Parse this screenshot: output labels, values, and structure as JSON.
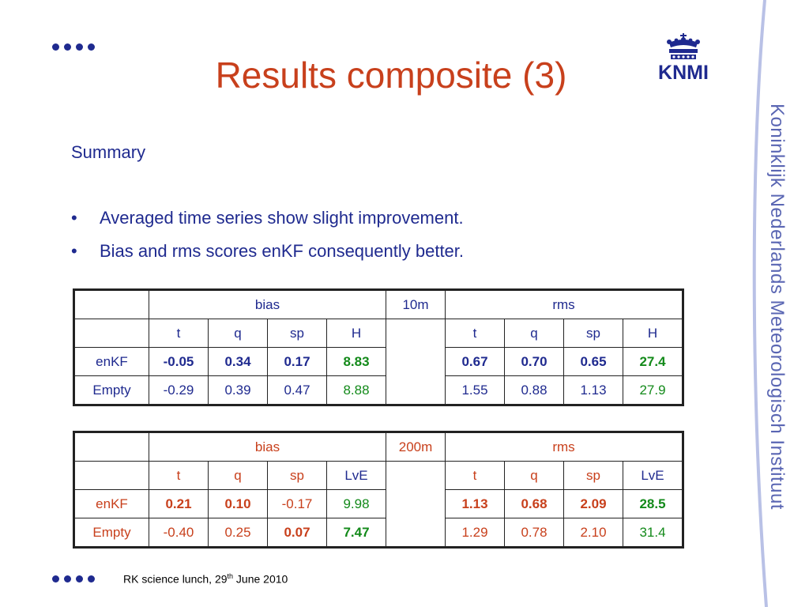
{
  "title": "Results composite (3)",
  "logo_text": "KNMI",
  "side_text": "Koninklijk Nederlands Meteorologisch Instituut",
  "heading": "Summary",
  "bullets": [
    "Averaged time series show slight improvement.",
    "Bias and rms scores enKF consequently better."
  ],
  "table1": {
    "group_left": "bias",
    "level": "10m",
    "group_right": "rms",
    "cols_left": [
      "t",
      "q",
      "sp",
      "H"
    ],
    "cols_right": [
      "t",
      "q",
      "sp",
      "H"
    ],
    "rows": [
      {
        "label": "enKF",
        "bias": [
          "-0.05",
          "0.34",
          "0.17",
          "8.83"
        ],
        "rms": [
          "0.67",
          "0.70",
          "0.65",
          "27.4"
        ]
      },
      {
        "label": "Empty",
        "bias": [
          "-0.29",
          "0.39",
          "0.47",
          "8.88"
        ],
        "rms": [
          "1.55",
          "0.88",
          "1.13",
          "27.9"
        ]
      }
    ]
  },
  "table2": {
    "group_left": "bias",
    "level": "200m",
    "group_right": "rms",
    "cols_left": [
      "t",
      "q",
      "sp",
      "LvE"
    ],
    "cols_right": [
      "t",
      "q",
      "sp",
      "LvE"
    ],
    "rows": [
      {
        "label": "enKF",
        "bias": [
          "0.21",
          "0.10",
          "-0.17",
          "9.98"
        ],
        "rms": [
          "1.13",
          "0.68",
          "2.09",
          "28.5"
        ]
      },
      {
        "label": "Empty",
        "bias": [
          "-0.40",
          "0.25",
          "0.07",
          "7.47"
        ],
        "rms": [
          "1.29",
          "0.78",
          "2.10",
          "31.4"
        ]
      }
    ]
  },
  "footer": {
    "text": "RK science lunch, 29",
    "sup": "th",
    "text_after": " June 2010"
  },
  "colors": {
    "title": "#c8401c",
    "text": "#1f2a8f",
    "green": "#138a1a",
    "red": "#c8401c"
  }
}
